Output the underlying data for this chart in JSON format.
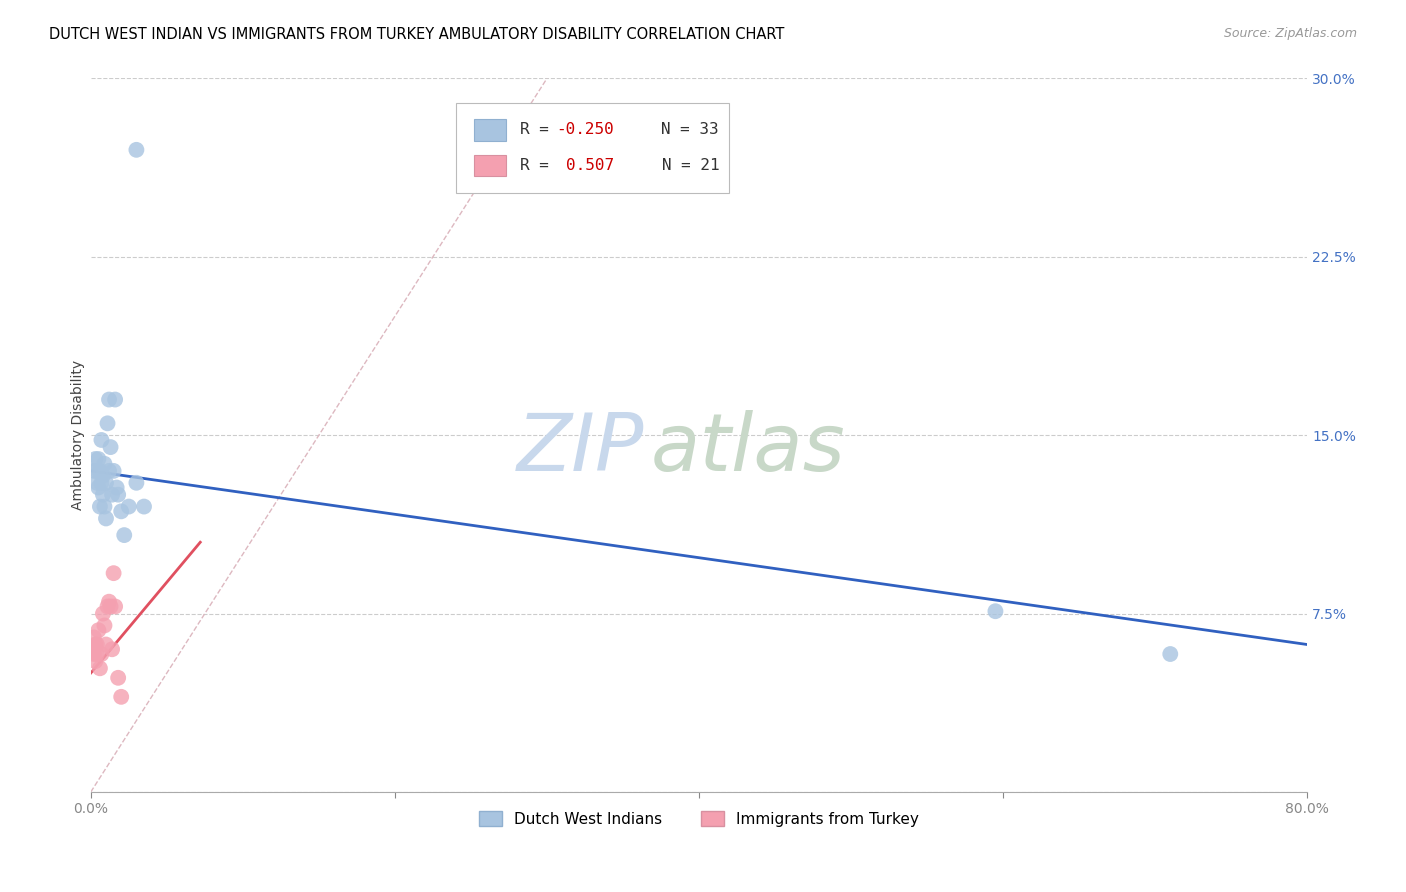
{
  "title": "DUTCH WEST INDIAN VS IMMIGRANTS FROM TURKEY AMBULATORY DISABILITY CORRELATION CHART",
  "source": "Source: ZipAtlas.com",
  "ylabel": "Ambulatory Disability",
  "xlim": [
    0.0,
    0.8
  ],
  "ylim": [
    0.0,
    0.3
  ],
  "xtick_positions": [
    0.0,
    0.2,
    0.4,
    0.6,
    0.8
  ],
  "xtick_labels": [
    "0.0%",
    "",
    "",
    "",
    "80.0%"
  ],
  "ytick_positions": [
    0.0,
    0.075,
    0.15,
    0.225,
    0.3
  ],
  "ytick_labels": [
    "",
    "7.5%",
    "15.0%",
    "22.5%",
    "30.0%"
  ],
  "blue_label": "Dutch West Indians",
  "pink_label": "Immigrants from Turkey",
  "legend_blue_R": "-0.250",
  "legend_blue_N": "33",
  "legend_pink_R": "0.507",
  "legend_pink_N": "21",
  "blue_color": "#a8c4e0",
  "pink_color": "#f4a0b0",
  "blue_line_color": "#3060c0",
  "pink_line_color": "#e05060",
  "diag_color": "#ddb8c0",
  "grid_color": "#cccccc",
  "blue_scatter_x": [
    0.002,
    0.003,
    0.004,
    0.004,
    0.005,
    0.005,
    0.006,
    0.006,
    0.007,
    0.007,
    0.008,
    0.008,
    0.009,
    0.009,
    0.01,
    0.01,
    0.011,
    0.012,
    0.012,
    0.013,
    0.014,
    0.015,
    0.016,
    0.017,
    0.018,
    0.02,
    0.022,
    0.025,
    0.03,
    0.035,
    0.03,
    0.595,
    0.71
  ],
  "blue_scatter_y": [
    0.135,
    0.14,
    0.13,
    0.135,
    0.128,
    0.14,
    0.12,
    0.135,
    0.13,
    0.148,
    0.125,
    0.133,
    0.12,
    0.138,
    0.115,
    0.13,
    0.155,
    0.135,
    0.165,
    0.145,
    0.125,
    0.135,
    0.165,
    0.128,
    0.125,
    0.118,
    0.108,
    0.12,
    0.13,
    0.12,
    0.27,
    0.076,
    0.058
  ],
  "pink_scatter_x": [
    0.001,
    0.002,
    0.002,
    0.003,
    0.003,
    0.004,
    0.004,
    0.005,
    0.006,
    0.007,
    0.008,
    0.009,
    0.01,
    0.011,
    0.012,
    0.013,
    0.014,
    0.015,
    0.016,
    0.018,
    0.02
  ],
  "pink_scatter_y": [
    0.06,
    0.058,
    0.065,
    0.055,
    0.062,
    0.058,
    0.062,
    0.068,
    0.052,
    0.058,
    0.075,
    0.07,
    0.062,
    0.078,
    0.08,
    0.078,
    0.06,
    0.092,
    0.078,
    0.048,
    0.04
  ],
  "blue_trendline_x": [
    0.0,
    0.8
  ],
  "blue_trendline_y": [
    0.135,
    0.062
  ],
  "pink_trendline_x": [
    0.0,
    0.072
  ],
  "pink_trendline_y": [
    0.05,
    0.105
  ],
  "diag_line_x": [
    0.0,
    0.3
  ],
  "diag_line_y": [
    0.0,
    0.3
  ],
  "watermark_zip": "ZIP",
  "watermark_atlas": "atlas",
  "watermark_color_zip": "#c8d8ec",
  "watermark_color_atlas": "#c8d8c8"
}
